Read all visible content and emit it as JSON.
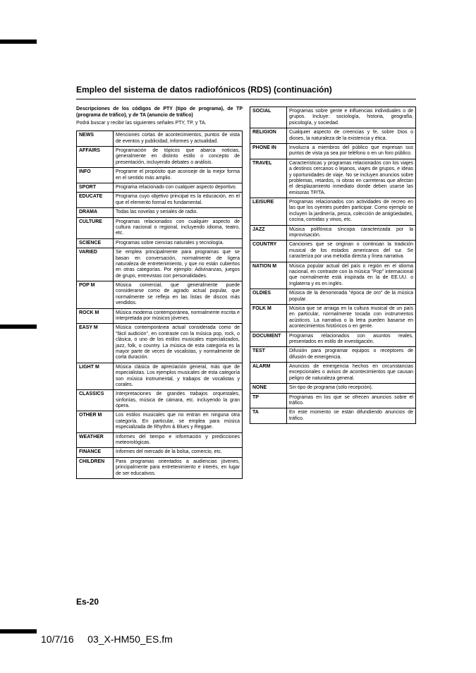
{
  "heading": "Empleo del sistema de datos radiofónicos (RDS) (continuación)",
  "intro_bold": "Descripciones de los códigos de PTY (tipo de programa), de TP (programa de tráfico), y de TA (anuncio de tráfico)",
  "intro_reg": "Podrá buscar y recibir las siguientes señales PTY, TP, y TA.",
  "table_left": [
    {
      "code": "NEWS",
      "desc": "Menciones cortas de acontecimientos, puntos de vista de eventos y publicidad, informes y actualidad."
    },
    {
      "code": "AFFAIRS",
      "desc": "Programación de tópicos que abarca noticias, generalmente en distinto estilo o concepto de presentación, incluyendo debates o análisis."
    },
    {
      "code": "INFO",
      "desc": "Programe el propósito que aconseje de la mejor forma en el sentido más amplio."
    },
    {
      "code": "SPORT",
      "desc": "Programa relacionado con cualquier aspecto deportivo."
    },
    {
      "code": "EDUCATE",
      "desc": "Programa cuyo objetivo principal es la educación, en el que el elemento formal es fundamental."
    },
    {
      "code": "DRAMA",
      "desc": "Todas las novelas y seriales de radio."
    },
    {
      "code": "CULTURE",
      "desc": "Programas relacionados con cualquier aspecto de cultura nacional o regional, incluyendo idioma, teatro, etc."
    },
    {
      "code": "SCIENCE",
      "desc": "Programas sobre ciencias naturales y tecnología."
    },
    {
      "code": "VARIED",
      "desc": "Se emplea principalmente para programas que se basan en conversación, normalmente de ligera naturaleza de entretenimiento, y que no están cubiertos en otras categorías. Por ejemplo: Adivinanzas, juegos de grupo, entrevistas con personalidades."
    },
    {
      "code": "POP M",
      "desc": "Música comercial, que generalmente puede considerarse como de agrado actual popular, que normalmente se refleja en las listas de discos más vendidos."
    },
    {
      "code": "ROCK M",
      "desc": "Música moderna contemporánea, normalmente escrita e interpretada por músicos jóvenes."
    },
    {
      "code": "EASY M",
      "desc": "Música contemporánea actual considerada como de \"fácil audición\", en contraste con la música pop, rock, o clásica, o uno de los estilos musicales especializados, jazz, folk, o country. La música de esta categoría es la mayor parte de veces de vocalistas, y normalmente de corta duración."
    },
    {
      "code": "LIGHT M",
      "desc": "Música clásica de apreciación general, más que de especialistas. Los ejemplos musicales de esta categoría son música instrumental, y trabajos de vocalistas y corales."
    },
    {
      "code": "CLASSICS",
      "desc": "Interpretaciones de grandes trabajos orquestales, sinfonías, música de cámara, etc. incluyendo la gran ópera."
    },
    {
      "code": "OTHER M",
      "desc": "Los estilos musicales que no entran en ninguna otra categoría. En particular, se emplea para música especializada de Rhythm & Blues y Reggae."
    },
    {
      "code": "WEATHER",
      "desc": "Informes del tiempo e información y predicciones meteorológicas."
    },
    {
      "code": "FINANCE",
      "desc": "Informes del mercado de la bolsa, comercio, etc."
    },
    {
      "code": "CHILDREN",
      "desc": "Para programas orientados a audiencias jóvenes, principalmente para entretenimiento e interés, en lugar de ser educativos."
    }
  ],
  "table_right": [
    {
      "code": "SOCIAL",
      "desc": "Programas sobre gente e influencias individuales o de grupos. Incluye: sociología, historia, geografía, psicología, y sociedad."
    },
    {
      "code": "RELIGION",
      "desc": "Cualquier aspecto de creencias y fe, sobre Dios o dioses, la naturaleza de la existencia y ética."
    },
    {
      "code": "PHONE IN",
      "desc": "Involucra a miembros del público que expresan sus puntos de vista ya sea por teléfono o en un foro público."
    },
    {
      "code": "TRAVEL",
      "desc": "Características y programas relacionados con los viajes a destinos cercanos o lejanos, viajes de grupos, e ideas y oportunidades de viaje. No se incluyen anuncios sobre problemas, retardos, ni obras en carreteras que afectan el desplazamiento inmediato donde deben usarse las emisoras TP/TA."
    },
    {
      "code": "LEISURE",
      "desc": "Programas relacionados con actividades de recreo en las que los oyentes pueden participar. Como ejemplo se incluyen la jardinería, pesca, colección de antigüedades, cocina, comidas y vinos, etc."
    },
    {
      "code": "JAZZ",
      "desc": "Música polifónica síncopa caracterizada por la improvisación."
    },
    {
      "code": "COUNTRY",
      "desc": "Canciones que se originan o continúan la tradición musical de los estados americanos del sur. Se caracteriza por una melodía directa y línea narrativa."
    },
    {
      "code": "NATION M",
      "desc": "Música popular actual del país o región en el idioma nacional, en contraste con la música \"Pop\" internacional que normalmente está inspirada en la de EE.UU. o Inglaterra y es en inglés."
    },
    {
      "code": "OLDIES",
      "desc": "Música de la denominada \"época de oro\" de la música popular."
    },
    {
      "code": "FOLK M",
      "desc": "Música que se arraiga en la cultura musical de un país en particular, normalmente tocada con instrumentos acústicos. La narrativa o la letra pueden basarse en acontecimientos históricos o en gente."
    },
    {
      "code": "DOCUMENT",
      "desc": "Programas relacionados con asuntos reales, presentados en estilo de investigación."
    },
    {
      "code": "TEST",
      "desc": "Difusión para programar equipos o receptores de difusión de emergencia."
    },
    {
      "code": "ALARM",
      "desc": "Anuncios de emergencia hechos en circunstancias excepcionales o avisos de acontecimientos que causan peligro de naturaleza general."
    },
    {
      "code": "NONE",
      "desc": "Sin tipo de programa (sólo recepción)."
    },
    {
      "code": "TP",
      "desc": "Programas en los que se ofrecen anuncios sobre el tráfico."
    },
    {
      "code": "TA",
      "desc": "En este momento se están difundiendo anuncios de tráfico."
    }
  ],
  "page_number": "Es-20",
  "footer_date": "10/7/16",
  "footer_file": "03_X-HM50_ES.fm"
}
